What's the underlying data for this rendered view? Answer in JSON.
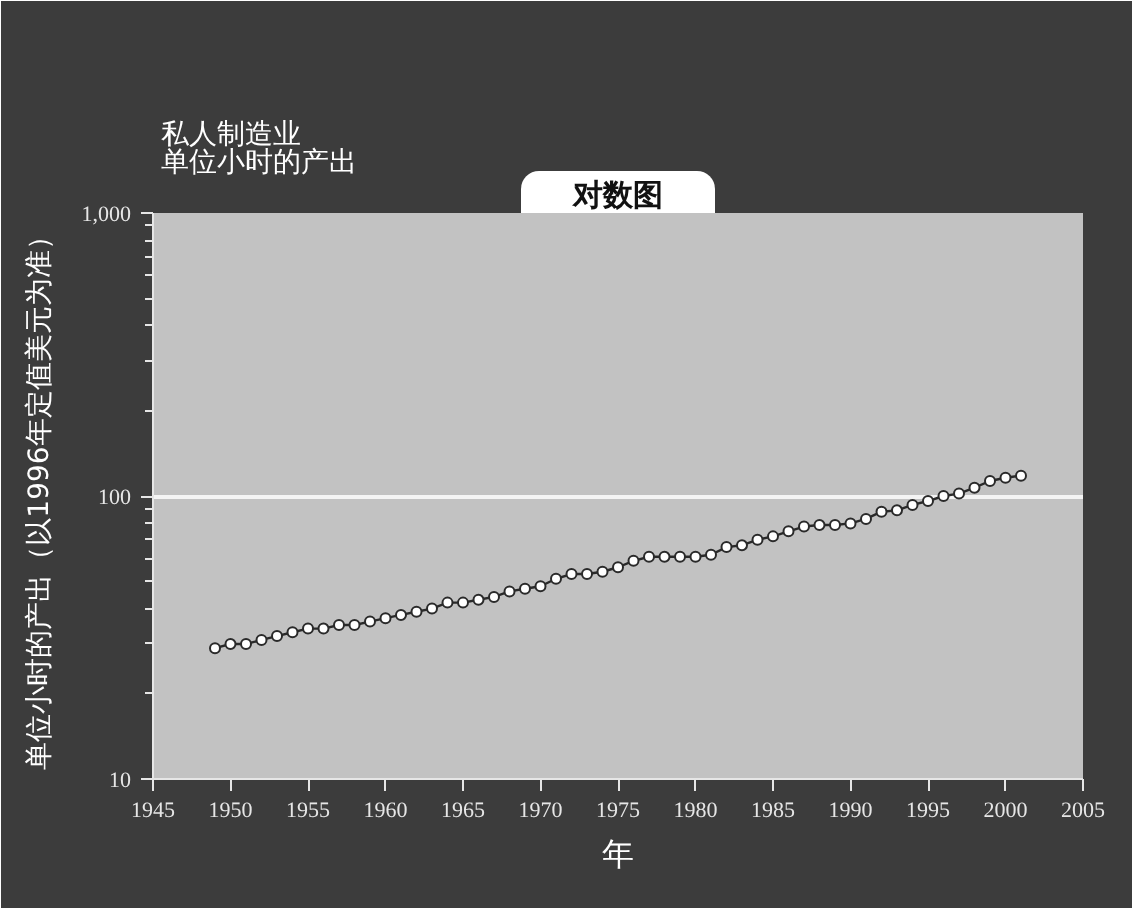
{
  "chart_data": {
    "type": "line",
    "title": "私人制造业",
    "subtitle": "单位小时的产出",
    "annotations": [
      "对数图"
    ],
    "xlabel": "年",
    "ylabel": "单位小时的产出（以1996年定值美元为准）",
    "x": [
      1949,
      1950,
      1951,
      1952,
      1953,
      1954,
      1955,
      1956,
      1957,
      1958,
      1959,
      1960,
      1961,
      1962,
      1963,
      1964,
      1965,
      1966,
      1967,
      1968,
      1969,
      1970,
      1971,
      1972,
      1973,
      1974,
      1975,
      1976,
      1977,
      1978,
      1979,
      1980,
      1981,
      1982,
      1983,
      1984,
      1985,
      1986,
      1987,
      1988,
      1989,
      1990,
      1991,
      1992,
      1993,
      1994,
      1995,
      1996,
      1997,
      1998,
      1999,
      2000,
      2001
    ],
    "series": [
      {
        "color": "#ffffff",
        "values": [
          29,
          30,
          30,
          31,
          32,
          33,
          34,
          34,
          35,
          35,
          36,
          37,
          38,
          39,
          40,
          42,
          42,
          43,
          44,
          46,
          47,
          48,
          51,
          53,
          53,
          54,
          56,
          59,
          61,
          61,
          61,
          61,
          62,
          66,
          67,
          70,
          72,
          75,
          78,
          79,
          79,
          80,
          83,
          88,
          89,
          93,
          96,
          100,
          102,
          107,
          113,
          116,
          118
        ]
      }
    ],
    "xlim": [
      1945,
      2005
    ],
    "xticks": [
      1945,
      1950,
      1955,
      1960,
      1965,
      1970,
      1975,
      1980,
      1985,
      1990,
      1995,
      2000,
      2005
    ],
    "ylim": [
      10,
      1000
    ],
    "yticks": [
      10,
      {
        "value": 20,
        "label": null
      },
      {
        "value": 30,
        "label": null
      },
      {
        "value": 40,
        "label": null
      },
      {
        "value": 50,
        "label": null
      },
      {
        "value": 60,
        "label": null
      },
      {
        "value": 70,
        "label": null
      },
      {
        "value": 80,
        "label": null
      },
      {
        "value": 90,
        "label": null
      },
      100,
      {
        "value": 200,
        "label": null
      },
      {
        "value": 300,
        "label": null
      },
      {
        "value": 400,
        "label": null
      },
      {
        "value": 500,
        "label": null
      },
      {
        "value": 600,
        "label": null
      },
      {
        "value": 700,
        "label": null
      },
      {
        "value": 800,
        "label": null
      },
      {
        "value": 900,
        "label": null
      },
      {
        "value": 1000,
        "label": "1,000"
      }
    ],
    "log": "y",
    "grid": "y",
    "marker": "circle",
    "line_style": "solid"
  }
}
